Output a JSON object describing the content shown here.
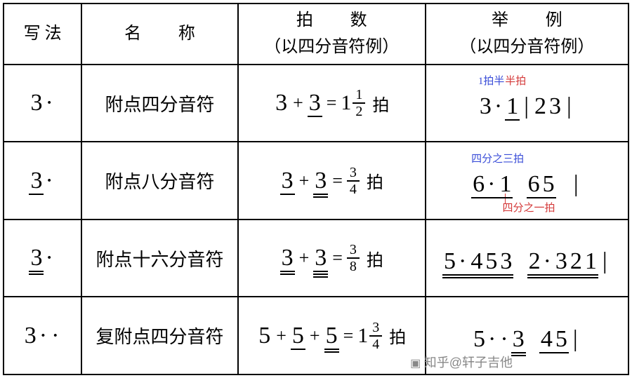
{
  "columns": {
    "widths_pct": [
      12.5,
      25,
      30,
      32.5
    ],
    "h0": "写 法",
    "h1a": "名",
    "h1b": "称",
    "h2a": "拍",
    "h2b": "数",
    "h2_sub": "（以四分音符例）",
    "h3a": "举",
    "h3b": "例",
    "h3_sub": "（以四分音符例）"
  },
  "rows": [
    {
      "notation": {
        "digit": "3",
        "underlines": 0,
        "dots": 1
      },
      "name": "附点四分音符",
      "beats_lhs_a": {
        "digit": "3",
        "u": 0
      },
      "beats_lhs_b": {
        "digit": "3",
        "u": 1
      },
      "beats_whole": "1",
      "beats_frac_top": "1",
      "beats_frac_bot": "2",
      "beats_unit": "拍",
      "example": {
        "seq": [
          {
            "kind": "hl",
            "color": "#aeb8ee",
            "items": [
              {
                "d": "3",
                "u": 0
              },
              {
                "dot": true
              }
            ],
            "label": "1拍半",
            "label_color": "#3a4dd8"
          },
          {
            "kind": "hl",
            "color": "#f5b9bd",
            "items": [
              {
                "d": "1",
                "u": 1
              }
            ],
            "label": "半拍",
            "label_color": "#d43a3a"
          },
          {
            "kind": "bar"
          },
          {
            "kind": "plain",
            "items": [
              {
                "d": "2",
                "u": 0
              }
            ]
          },
          {
            "kind": "plain",
            "items": [
              {
                "d": "3",
                "u": 0
              }
            ]
          },
          {
            "kind": "bar"
          }
        ]
      }
    },
    {
      "notation": {
        "digit": "3",
        "underlines": 1,
        "dots": 1
      },
      "name": "附点八分音符",
      "beats_lhs_a": {
        "digit": "3",
        "u": 1
      },
      "beats_lhs_b": {
        "digit": "3",
        "u": 2
      },
      "beats_whole": "",
      "beats_frac_top": "3",
      "beats_frac_bot": "4",
      "beats_unit": "拍",
      "example": {
        "seq": [
          {
            "kind": "grp",
            "u": 1,
            "items": [
              {
                "kind": "hl",
                "color": "#aeb8ee",
                "items": [
                  {
                    "d": "6",
                    "u": 0
                  },
                  {
                    "dot": true
                  }
                ],
                "label": "四分之三拍",
                "label_color": "#3a4dd8"
              },
              {
                "kind": "hl",
                "color": "#f5b9bd",
                "items": [
                  {
                    "d": "1",
                    "u": 1
                  }
                ],
                "label_below": "四分之一拍",
                "label_color": "#d43a3a",
                "lead": true
              }
            ]
          },
          {
            "kind": "sp"
          },
          {
            "kind": "grp",
            "u": 1,
            "items": [
              {
                "kind": "plain",
                "items": [
                  {
                    "d": "6",
                    "u": 0
                  }
                ]
              },
              {
                "kind": "plain",
                "items": [
                  {
                    "d": "5",
                    "u": 0
                  }
                ]
              }
            ]
          },
          {
            "kind": "sp"
          },
          {
            "kind": "bar"
          }
        ]
      }
    },
    {
      "notation": {
        "digit": "3",
        "underlines": 2,
        "dots": 1
      },
      "name": "附点十六分音符",
      "beats_lhs_a": {
        "digit": "3",
        "u": 2
      },
      "beats_lhs_b": {
        "digit": "3",
        "u": 3
      },
      "beats_whole": "",
      "beats_frac_top": "3",
      "beats_frac_bot": "8",
      "beats_unit": "拍",
      "example": {
        "seq": [
          {
            "kind": "grp",
            "u": 2,
            "items": [
              {
                "kind": "plain",
                "items": [
                  {
                    "d": "5",
                    "u": 0
                  },
                  {
                    "dot": true
                  }
                ]
              },
              {
                "kind": "plain",
                "items": [
                  {
                    "d": "4",
                    "u": 1
                  }
                ]
              },
              {
                "kind": "plain",
                "items": [
                  {
                    "d": "5",
                    "u": 0
                  }
                ]
              },
              {
                "kind": "plain",
                "items": [
                  {
                    "d": "3",
                    "u": 0
                  }
                ]
              }
            ]
          },
          {
            "kind": "sp"
          },
          {
            "kind": "grp",
            "u": 2,
            "items": [
              {
                "kind": "plain",
                "items": [
                  {
                    "d": "2",
                    "u": 0
                  },
                  {
                    "dot": true
                  }
                ]
              },
              {
                "kind": "plain",
                "items": [
                  {
                    "d": "3",
                    "u": 1
                  }
                ]
              },
              {
                "kind": "plain",
                "items": [
                  {
                    "d": "2",
                    "u": 0
                  }
                ]
              },
              {
                "kind": "plain",
                "items": [
                  {
                    "d": "1",
                    "u": 0
                  }
                ]
              }
            ]
          },
          {
            "kind": "bar"
          }
        ]
      }
    },
    {
      "notation": {
        "digit": "3",
        "underlines": 0,
        "dots": 2
      },
      "name": "复附点四分音符",
      "beats_lhs_a": {
        "digit": "5",
        "u": 0
      },
      "beats_lhs_b": {
        "digit": "5",
        "u": 1
      },
      "beats_lhs_c": {
        "digit": "5",
        "u": 2
      },
      "beats_whole": "1",
      "beats_frac_top": "3",
      "beats_frac_bot": "4",
      "beats_unit": "拍",
      "example": {
        "seq": [
          {
            "kind": "plain",
            "items": [
              {
                "d": "5",
                "u": 0
              },
              {
                "dot": true
              },
              {
                "dot": true
              }
            ]
          },
          {
            "kind": "plain",
            "items": [
              {
                "d": "3",
                "u": 2
              }
            ]
          },
          {
            "kind": "sp"
          },
          {
            "kind": "grp",
            "u": 1,
            "items": [
              {
                "kind": "plain",
                "items": [
                  {
                    "d": "4",
                    "u": 0
                  }
                ]
              },
              {
                "kind": "plain",
                "items": [
                  {
                    "d": "5",
                    "u": 0
                  }
                ]
              }
            ]
          },
          {
            "kind": "bar"
          }
        ]
      }
    }
  ],
  "watermark": "知乎@轩子吉他",
  "colors": {
    "border": "#000000",
    "bg": "#ffffff"
  }
}
